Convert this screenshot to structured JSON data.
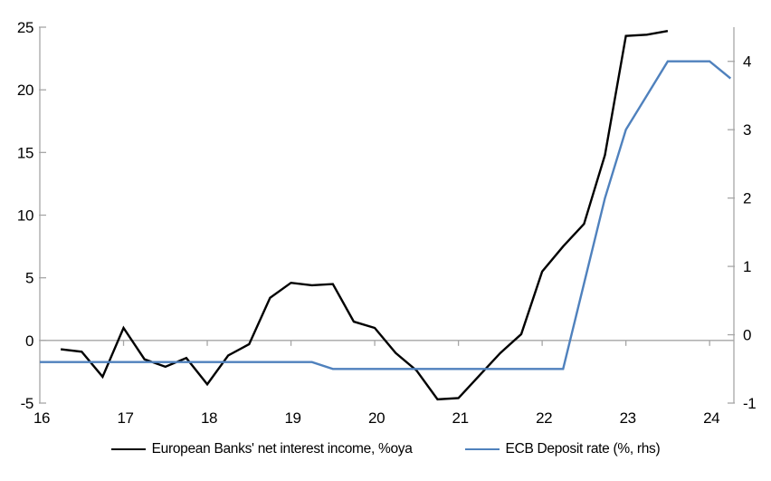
{
  "chart_data": {
    "type": "line",
    "title": "",
    "x_axis": {
      "tick_values": [
        16,
        17,
        18,
        19,
        20,
        21,
        22,
        23,
        24
      ],
      "tick_labels": [
        "16",
        "17",
        "18",
        "19",
        "20",
        "21",
        "22",
        "23",
        "24"
      ],
      "range": [
        16,
        24.29
      ],
      "ticks_on_zero_line": true
    },
    "y_axis_left": {
      "tick_values": [
        -5,
        0,
        5,
        10,
        15,
        20,
        25
      ],
      "tick_labels": [
        "-5",
        "0",
        "5",
        "10",
        "15",
        "20",
        "25"
      ],
      "range": [
        -5,
        25
      ]
    },
    "y_axis_right": {
      "tick_values": [
        -1,
        0,
        1,
        2,
        3,
        4
      ],
      "tick_labels": [
        "-1",
        "0",
        "1",
        "2",
        "3",
        "4"
      ],
      "range": [
        -1,
        4.5
      ]
    },
    "grid": "zero-line-only",
    "legend_position": "bottom-center",
    "series": [
      {
        "name": "European Banks' net interest income, %oya",
        "axis": "left",
        "color": "#000000",
        "x": [
          16.25,
          16.5,
          16.75,
          17.0,
          17.25,
          17.5,
          17.75,
          18.0,
          18.25,
          18.5,
          18.75,
          19.0,
          19.25,
          19.5,
          19.75,
          20.0,
          20.25,
          20.5,
          20.75,
          21.0,
          21.25,
          21.5,
          21.75,
          22.0,
          22.25,
          22.5,
          22.75,
          23.0,
          23.25,
          23.5
        ],
        "values": [
          -0.7,
          -0.9,
          -2.9,
          1.0,
          -1.5,
          -2.1,
          -1.4,
          -3.5,
          -1.2,
          -0.3,
          3.4,
          4.6,
          4.4,
          4.5,
          1.5,
          1.0,
          -1.0,
          -2.4,
          -4.7,
          -4.6,
          -2.8,
          -1.0,
          0.5,
          5.5,
          7.5,
          9.3,
          14.8,
          24.3,
          24.4,
          24.7
        ]
      },
      {
        "name": "ECB Deposit rate (%, rhs)",
        "axis": "right",
        "color": "#4F81BD",
        "x": [
          16.0,
          16.25,
          16.5,
          16.75,
          17.0,
          17.25,
          17.5,
          17.75,
          18.0,
          18.25,
          18.5,
          18.75,
          19.0,
          19.25,
          19.5,
          19.75,
          20.0,
          20.25,
          20.5,
          20.75,
          21.0,
          21.25,
          21.5,
          21.75,
          22.0,
          22.25,
          22.5,
          22.75,
          23.0,
          23.25,
          23.5,
          23.75,
          24.0,
          24.25
        ],
        "values": [
          -0.4,
          -0.4,
          -0.4,
          -0.4,
          -0.4,
          -0.4,
          -0.4,
          -0.4,
          -0.4,
          -0.4,
          -0.4,
          -0.4,
          -0.4,
          -0.4,
          -0.5,
          -0.5,
          -0.5,
          -0.5,
          -0.5,
          -0.5,
          -0.5,
          -0.5,
          -0.5,
          -0.5,
          -0.5,
          -0.5,
          0.75,
          2.0,
          3.0,
          3.5,
          4.0,
          4.0,
          4.0,
          3.75
        ]
      }
    ],
    "colors": {
      "axis_line": "#a6a6a6",
      "zero_line": "#a6a6a6",
      "tick_text": "#000000",
      "background": "#ffffff"
    }
  }
}
